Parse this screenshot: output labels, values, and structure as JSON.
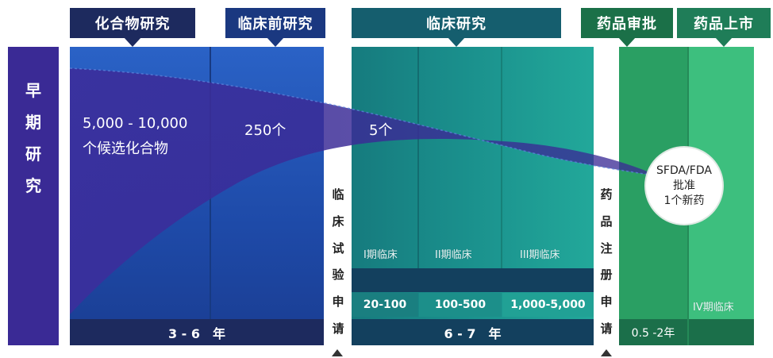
{
  "stages": {
    "compound": "化合物研究",
    "preclinical": "临床前研究",
    "clinical": "临床研究",
    "approval": "药品审批",
    "market": "药品上市"
  },
  "early_research": [
    "早",
    "期",
    "研",
    "究"
  ],
  "clinical_trial_application": [
    "临",
    "床",
    "试",
    "验",
    "申",
    "请"
  ],
  "drug_registration_application": [
    "药",
    "品",
    "注",
    "册",
    "申",
    "请"
  ],
  "counts": {
    "candidates_line1": "5,000 - 10,000",
    "candidates_line2": "个候选化合物",
    "preclinical": "250个",
    "clinical": "5个"
  },
  "approval_circle": [
    "SFDA/FDA",
    "批准",
    "1个新药"
  ],
  "phases": {
    "p1": "I期临床",
    "p2": "II期临床",
    "p3": "III期临床",
    "p4": "IV期临床"
  },
  "subjects": {
    "p1": "20-100",
    "p2": "100-500",
    "p3": "1,000-5,000"
  },
  "durations": {
    "discovery": "3 - 6　年",
    "clinical": "6 - 7　年",
    "approval": "0.5 -2年"
  },
  "colors": {
    "navy": "#1d2a5e",
    "discovery_blue": "#1f4aa3",
    "early_purple": "#3a2a95",
    "clinical_teal": "#1a8d8a",
    "approval_green": "#2eae6e",
    "dark_bar": "#13405e"
  }
}
